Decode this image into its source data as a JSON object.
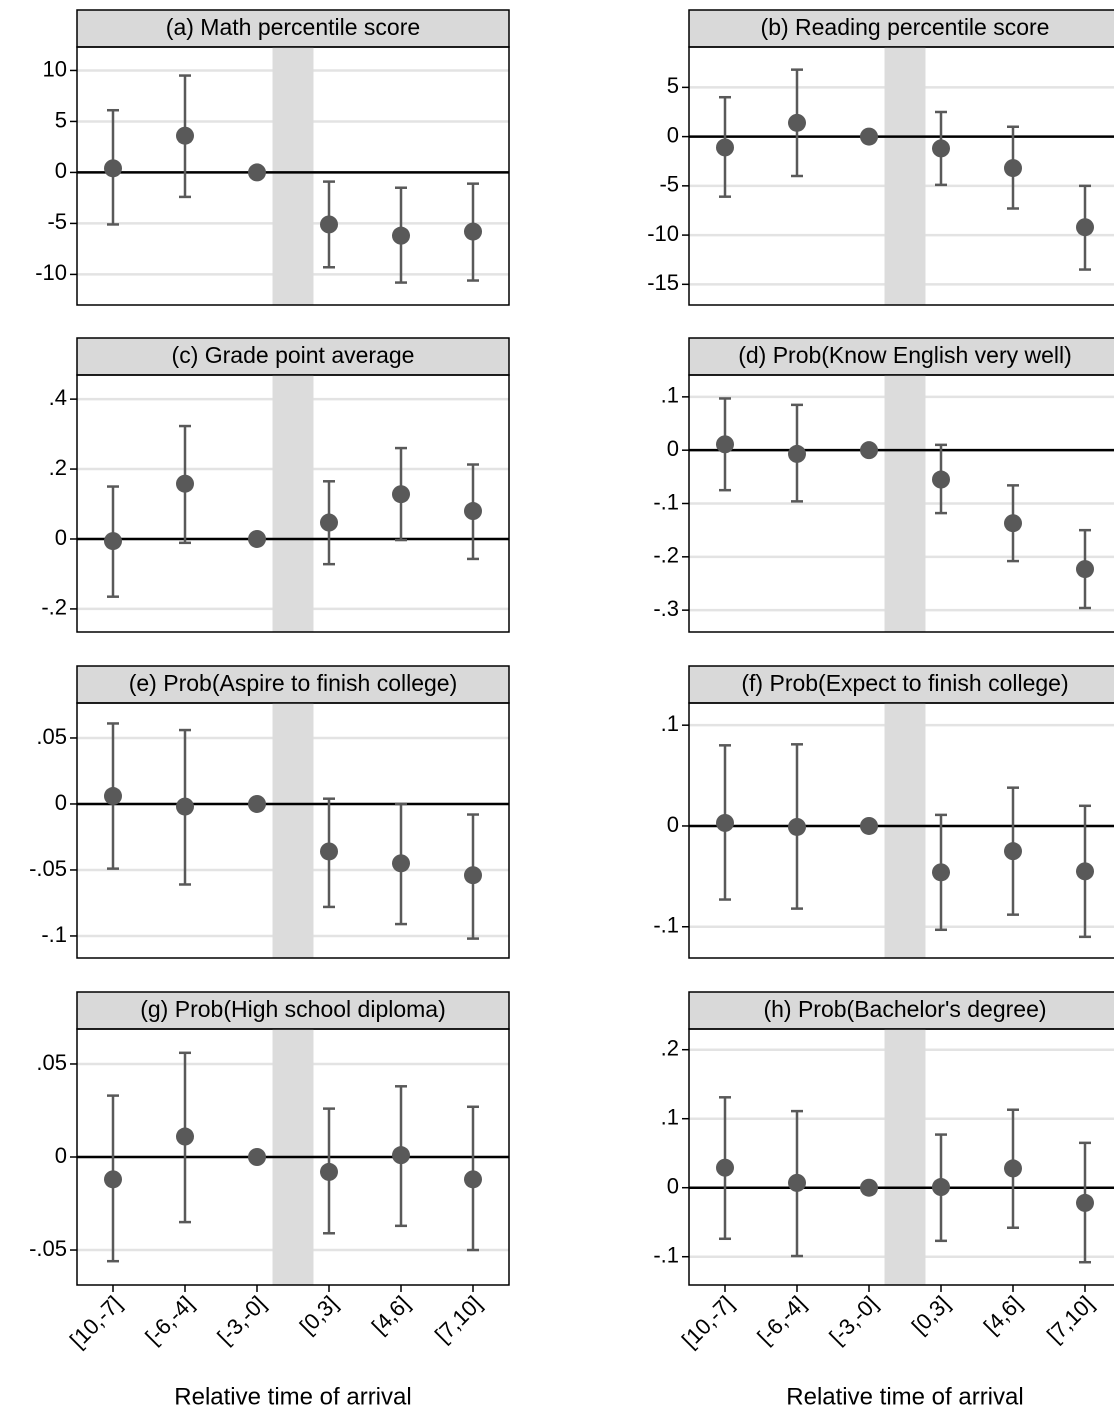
{
  "chart_data": [
    {
      "type": "errorbar",
      "title": "(a) Math percentile score",
      "color": "#595959",
      "values": [
        0.4,
        3.6,
        0,
        -5.1,
        -6.2,
        -5.8
      ],
      "ci_low": [
        -5.1,
        -2.4,
        null,
        -9.3,
        -10.8,
        -10.6
      ],
      "ci_high": [
        6.1,
        9.5,
        null,
        -0.9,
        -1.5,
        -1.1
      ],
      "ylim": [
        -13,
        12.3
      ],
      "yticks": [
        10,
        5,
        0,
        -5,
        -10
      ],
      "grid": true
    },
    {
      "type": "errorbar",
      "title": "(b) Reading percentile score",
      "color": "#595959",
      "values": [
        -1.1,
        1.4,
        0,
        -1.2,
        -3.2,
        -9.2
      ],
      "ci_low": [
        -6.1,
        -4,
        null,
        -4.9,
        -7.3,
        -13.5
      ],
      "ci_high": [
        4,
        6.8,
        null,
        2.5,
        1,
        -5
      ],
      "ylim": [
        -17.1,
        9.1
      ],
      "yticks": [
        5,
        0,
        -5,
        -10,
        -15
      ],
      "grid": true
    },
    {
      "type": "errorbar",
      "title": "(c) Grade point average",
      "color": "#595959",
      "values": [
        -0.006,
        0.158,
        0,
        0.047,
        0.128,
        0.08
      ],
      "ci_low": [
        -0.165,
        -0.011,
        null,
        -0.072,
        -0.003,
        -0.057
      ],
      "ci_high": [
        0.15,
        0.323,
        null,
        0.165,
        0.26,
        0.213
      ],
      "ylim": [
        -0.266,
        0.469
      ],
      "yticks": [
        {
          "value": 0.4,
          "label": ".4"
        },
        {
          "value": 0.2,
          "label": ".2"
        },
        0,
        {
          "value": -0.2,
          "label": "-.2"
        }
      ],
      "grid": true
    },
    {
      "type": "errorbar",
      "title": "(d) Prob(Know English very well)",
      "color": "#595959",
      "values": [
        0.011,
        -0.007,
        0,
        -0.055,
        -0.137,
        -0.223
      ],
      "ci_low": [
        -0.075,
        -0.096,
        null,
        -0.118,
        -0.208,
        -0.296
      ],
      "ci_high": [
        0.097,
        0.085,
        null,
        0.01,
        -0.066,
        -0.15
      ],
      "ylim": [
        -0.341,
        0.141
      ],
      "yticks": [
        {
          "value": 0.1,
          "label": ".1"
        },
        0,
        {
          "value": -0.1,
          "label": "-.1"
        },
        {
          "value": -0.2,
          "label": "-.2"
        },
        {
          "value": -0.3,
          "label": "-.3"
        }
      ],
      "grid": true
    },
    {
      "type": "errorbar",
      "title": "(e) Prob(Aspire to finish college)",
      "color": "#595959",
      "values": [
        0.006,
        -0.002,
        0,
        -0.036,
        -0.045,
        -0.054
      ],
      "ci_low": [
        -0.049,
        -0.061,
        null,
        -0.078,
        -0.091,
        -0.102
      ],
      "ci_high": [
        0.061,
        0.056,
        null,
        0.004,
        0,
        -0.008
      ],
      "ylim": [
        -0.1167,
        0.0765
      ],
      "yticks": [
        {
          "value": 0.05,
          "label": ".05"
        },
        0,
        {
          "value": -0.05,
          "label": "-.05"
        },
        {
          "value": -0.1,
          "label": "-.1"
        }
      ],
      "grid": true
    },
    {
      "type": "errorbar",
      "title": "(f) Prob(Expect to finish college)",
      "color": "#595959",
      "values": [
        0.003,
        -0.001,
        0,
        -0.046,
        -0.025,
        -0.045
      ],
      "ci_low": [
        -0.073,
        -0.082,
        null,
        -0.103,
        -0.088,
        -0.11
      ],
      "ci_high": [
        0.08,
        0.081,
        null,
        0.011,
        0.038,
        0.02
      ],
      "ylim": [
        -0.131,
        0.122
      ],
      "yticks": [
        {
          "value": 0.1,
          "label": ".1"
        },
        0,
        {
          "value": -0.1,
          "label": "-.1"
        }
      ],
      "grid": true
    },
    {
      "type": "errorbar",
      "title": "(g) Prob(High school diploma)",
      "color": "#595959",
      "categories": [
        "[10,-7]",
        "[-6,-4]",
        "[-3,-0]",
        "[0,3]",
        "[4,6]",
        "[7,10]"
      ],
      "x_label": "Relative time of arrival",
      "values": [
        -0.012,
        0.011,
        0,
        -0.008,
        0.001,
        -0.012
      ],
      "ci_low": [
        -0.056,
        -0.035,
        null,
        -0.041,
        -0.037,
        -0.05
      ],
      "ci_high": [
        0.033,
        0.056,
        null,
        0.026,
        0.038,
        0.027
      ],
      "ylim": [
        -0.0688,
        0.0688
      ],
      "yticks": [
        {
          "value": 0.05,
          "label": ".05"
        },
        0,
        {
          "value": -0.05,
          "label": "-.05"
        }
      ],
      "grid": true
    },
    {
      "type": "errorbar",
      "title": "(h) Prob(Bachelor's degree)",
      "color": "#595959",
      "categories": [
        "[10,-7]",
        "[-6,-4]",
        "[-3,-0]",
        "[0,3]",
        "[4,6]",
        "[7,10]"
      ],
      "x_label": "Relative time of arrival",
      "values": [
        0.029,
        0.007,
        0,
        0.001,
        0.028,
        -0.022
      ],
      "ci_low": [
        -0.074,
        -0.099,
        null,
        -0.077,
        -0.058,
        -0.108
      ],
      "ci_high": [
        0.131,
        0.111,
        null,
        0.077,
        0.113,
        0.065
      ],
      "ylim": [
        -0.141,
        0.23
      ],
      "yticks": [
        {
          "value": 0.2,
          "label": ".2"
        },
        {
          "value": 0.1,
          "label": ".1"
        },
        0,
        {
          "value": -0.1,
          "label": "-.1"
        }
      ],
      "grid": true
    }
  ]
}
